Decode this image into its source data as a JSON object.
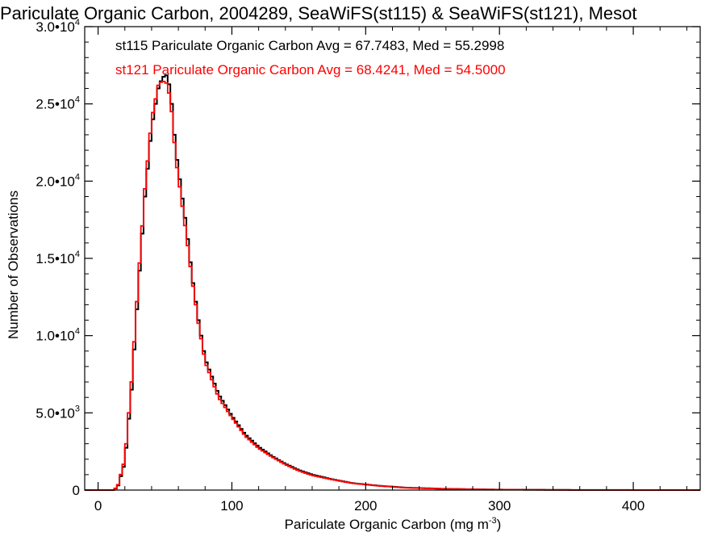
{
  "chart_data": {
    "type": "histogram",
    "title": "Pariculate Organic Carbon, 2004289, SeaWiFS(st115) & SeaWiFS(st121), Mesot",
    "xlabel": "Pariculate Organic Carbon (mg m",
    "xlabel_sup": "-3",
    "xlabel_end": ")",
    "ylabel": "Number of Observations",
    "xlim": [
      -10,
      450
    ],
    "ylim": [
      0,
      30000
    ],
    "xticks": [
      0,
      100,
      200,
      300,
      400
    ],
    "xtick_labels": [
      "0",
      "100",
      "200",
      "300",
      "400"
    ],
    "yticks": [
      0,
      5000,
      10000,
      15000,
      20000,
      25000,
      30000
    ],
    "ytick_labels": [
      {
        "mant": "0",
        "exp": ""
      },
      {
        "mant": "5.0•10",
        "exp": "3"
      },
      {
        "mant": "1.0•10",
        "exp": "4"
      },
      {
        "mant": "1.5•10",
        "exp": "4"
      },
      {
        "mant": "2.0•10",
        "exp": "4"
      },
      {
        "mant": "2.5•10",
        "exp": "4"
      },
      {
        "mant": "3.0•10",
        "exp": "4"
      }
    ],
    "grid": false,
    "legend_placement": "top-left",
    "series": [
      {
        "name": "st115",
        "legend_text": "st115 Pariculate Organic Carbon Avg = 67.7483, Med = 55.2998",
        "color": "#000000",
        "points": [
          [
            -10,
            0
          ],
          [
            12,
            0
          ],
          [
            15,
            300
          ],
          [
            20,
            1800
          ],
          [
            25,
            6500
          ],
          [
            30,
            13000
          ],
          [
            35,
            19000
          ],
          [
            40,
            23500
          ],
          [
            45,
            26000
          ],
          [
            48,
            26700
          ],
          [
            52,
            26900
          ],
          [
            55,
            25000
          ],
          [
            58,
            22000
          ],
          [
            62,
            19500
          ],
          [
            66,
            17000
          ],
          [
            70,
            14000
          ],
          [
            75,
            11000
          ],
          [
            80,
            8500
          ],
          [
            90,
            6200
          ],
          [
            100,
            4800
          ],
          [
            110,
            3600
          ],
          [
            120,
            2800
          ],
          [
            130,
            2200
          ],
          [
            140,
            1700
          ],
          [
            150,
            1300
          ],
          [
            160,
            1000
          ],
          [
            175,
            700
          ],
          [
            190,
            450
          ],
          [
            210,
            280
          ],
          [
            230,
            160
          ],
          [
            260,
            80
          ],
          [
            300,
            30
          ],
          [
            350,
            10
          ],
          [
            400,
            3
          ],
          [
            450,
            0
          ]
        ]
      },
      {
        "name": "st121",
        "legend_text": "st121 Pariculate Organic Carbon Avg = 68.4241, Med = 54.5000",
        "color": "#ff0000",
        "points": [
          [
            -10,
            0
          ],
          [
            12,
            0
          ],
          [
            15,
            350
          ],
          [
            20,
            2000
          ],
          [
            25,
            7000
          ],
          [
            30,
            13500
          ],
          [
            35,
            19500
          ],
          [
            40,
            24000
          ],
          [
            45,
            26200
          ],
          [
            48,
            26500
          ],
          [
            52,
            26300
          ],
          [
            55,
            24500
          ],
          [
            58,
            21500
          ],
          [
            62,
            19000
          ],
          [
            66,
            16500
          ],
          [
            70,
            13800
          ],
          [
            75,
            10800
          ],
          [
            80,
            8300
          ],
          [
            90,
            6000
          ],
          [
            100,
            4700
          ],
          [
            110,
            3500
          ],
          [
            120,
            2700
          ],
          [
            130,
            2150
          ],
          [
            140,
            1650
          ],
          [
            150,
            1250
          ],
          [
            160,
            950
          ],
          [
            175,
            680
          ],
          [
            190,
            440
          ],
          [
            210,
            270
          ],
          [
            230,
            150
          ],
          [
            260,
            75
          ],
          [
            300,
            28
          ],
          [
            350,
            9
          ],
          [
            400,
            3
          ],
          [
            450,
            0
          ]
        ]
      }
    ]
  }
}
